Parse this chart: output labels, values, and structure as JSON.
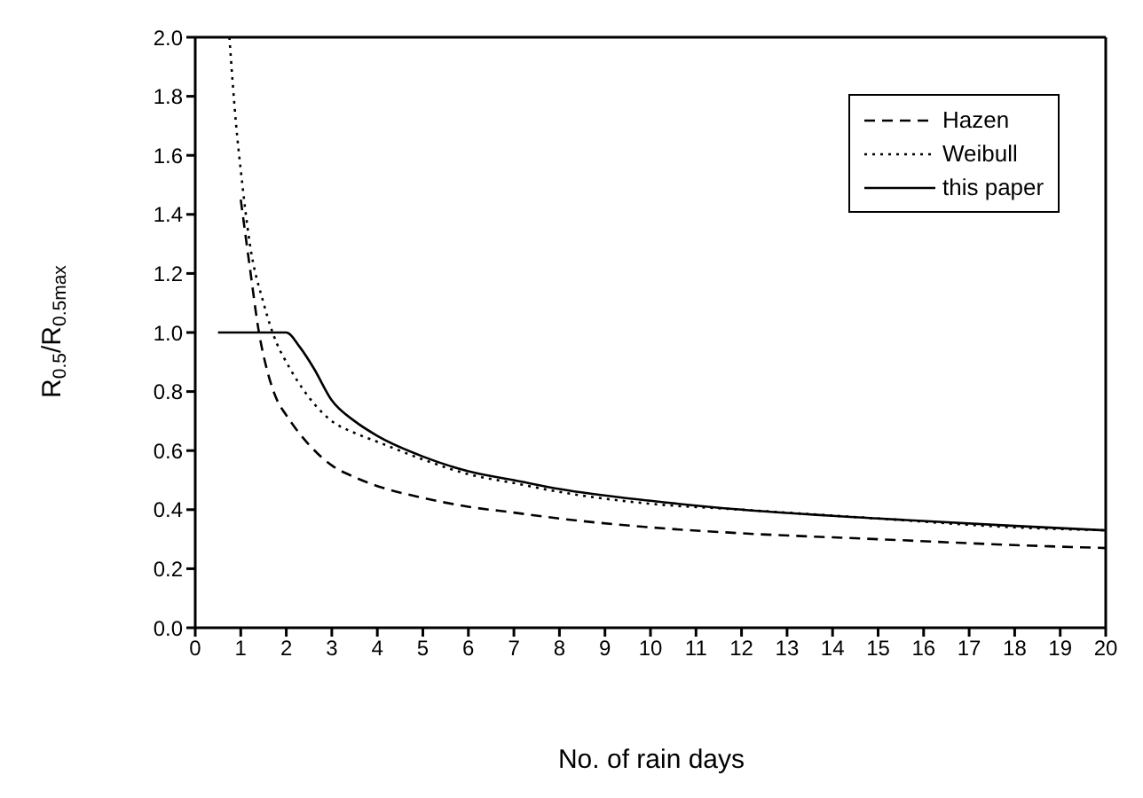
{
  "chart_data": {
    "type": "line",
    "xlabel": "No. of rain days",
    "ylabel": "R$_{0.5}$/R$_{0.5max}$",
    "xlim": [
      0,
      20
    ],
    "xticks": [
      0,
      1,
      2,
      3,
      4,
      5,
      6,
      7,
      8,
      9,
      10,
      11,
      12,
      13,
      14,
      15,
      16,
      17,
      18,
      19,
      20
    ],
    "ylim": [
      0,
      2
    ],
    "yticks": [
      {
        "value": 0,
        "label": "0.0"
      },
      {
        "value": 0.2,
        "label": "0.2"
      },
      {
        "value": 0.4,
        "label": "0.4"
      },
      {
        "value": 0.6,
        "label": "0.6"
      },
      {
        "value": 0.8,
        "label": "0.8"
      },
      {
        "value": 1,
        "label": "1.0"
      },
      {
        "value": 1.2,
        "label": "1.2"
      },
      {
        "value": 1.4,
        "label": "1.4"
      },
      {
        "value": 1.6,
        "label": "1.6"
      },
      {
        "value": 1.8,
        "label": "1.8"
      },
      {
        "value": 2,
        "label": "2.0"
      }
    ],
    "legend": "top right",
    "marker": "none",
    "series": [
      {
        "name": "Hazen",
        "color": "#000000",
        "line_style": "dashed",
        "x": [
          1,
          1.2,
          1.4,
          1.6,
          1.8,
          2,
          2.5,
          3,
          3.5,
          4,
          5,
          6,
          7,
          8,
          10,
          12,
          15,
          18,
          20
        ],
        "values": [
          1.45,
          1.22,
          1.0,
          0.86,
          0.77,
          0.72,
          0.62,
          0.55,
          0.51,
          0.48,
          0.44,
          0.41,
          0.39,
          0.37,
          0.34,
          0.32,
          0.3,
          0.28,
          0.27
        ]
      },
      {
        "name": "Weibull",
        "color": "#000000",
        "line_style": "dotted",
        "x": [
          0.75,
          0.9,
          1,
          1.2,
          1.5,
          1.8,
          2,
          2.5,
          3,
          3.5,
          4,
          5,
          6,
          7,
          8,
          10,
          12,
          15,
          18,
          20
        ],
        "values": [
          2.0,
          1.7,
          1.55,
          1.3,
          1.1,
          0.96,
          0.9,
          0.78,
          0.7,
          0.66,
          0.63,
          0.57,
          0.52,
          0.49,
          0.46,
          0.42,
          0.4,
          0.37,
          0.34,
          0.33
        ]
      },
      {
        "name": "this paper",
        "color": "#000000",
        "line_style": "solid",
        "x": [
          0.5,
          1,
          1.5,
          2,
          2.3,
          2.6,
          3,
          3.5,
          4,
          5,
          6,
          7,
          8,
          10,
          12,
          15,
          18,
          20
        ],
        "values": [
          1.0,
          1.0,
          1.0,
          1.0,
          0.95,
          0.88,
          0.77,
          0.7,
          0.65,
          0.58,
          0.53,
          0.5,
          0.47,
          0.43,
          0.4,
          0.37,
          0.345,
          0.33
        ]
      }
    ]
  }
}
